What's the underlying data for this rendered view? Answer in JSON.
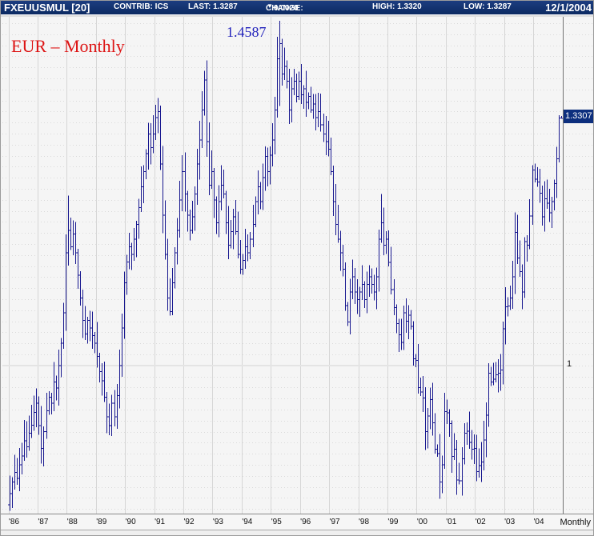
{
  "header": {
    "symbol": "FXEUUSMUL [20]",
    "contrib": "CONTRIB: ICS",
    "last": "LAST: 1.3287",
    "change_label": "CHANGE:",
    "change_arrow": "▼",
    "change_value": "0.0020",
    "high": "HIGH: 1.3320",
    "low": "LOW: 1.3287",
    "date": "12/1/2004"
  },
  "annotations": {
    "series_title": "EUR – Monthly",
    "peak_label": "1.4587",
    "price_box_value": "1.3307",
    "unit_gridline_label": "1",
    "interval_label": "Monthly"
  },
  "colors": {
    "header_bg": "#10306e",
    "bar_color": "#17178f",
    "title_red": "#dd1414",
    "annotation_blue": "#2222bb",
    "price_box_bg": "#0d2f7e",
    "grid_vertical": "#d6d6d6",
    "grid_dotted": "#d9d9d9",
    "grid_unit_line": "#e4e4e4",
    "plot_border": "#737373",
    "background": "#f5f5f5"
  },
  "chart_data": {
    "type": "bar",
    "subtype": "ohlc-hlc-bars",
    "title": "EUR – Monthly",
    "instrument": "FXEUUSMUL [20]",
    "interval": "Monthly",
    "start_month": "1986-01",
    "end_month": "2004-12",
    "x_tick_labels": [
      "'86",
      "'87",
      "'88",
      "'89",
      "'90",
      "'91",
      "'92",
      "'93",
      "'94",
      "'95",
      "'96",
      "'97",
      "'98",
      "'99",
      "'00",
      "'01",
      "'02",
      "'03",
      "'04"
    ],
    "y_axis_labeled_value": 1,
    "ylim_visible": [
      0.8,
      1.46
    ],
    "annotated_high": 1.4587,
    "last": 1.3287,
    "session_high": 1.332,
    "session_low": 1.3287,
    "change": -0.002,
    "monthly_closes": [
      0.83,
      0.845,
      0.858,
      0.85,
      0.868,
      0.88,
      0.9,
      0.892,
      0.91,
      0.921,
      0.938,
      0.95,
      0.92,
      0.89,
      0.912,
      0.94,
      0.958,
      0.95,
      0.978,
      0.97,
      1.0,
      1.03,
      1.07,
      1.15,
      1.18,
      1.158,
      1.175,
      1.15,
      1.12,
      1.09,
      1.06,
      1.042,
      1.06,
      1.05,
      1.04,
      1.03,
      1.012,
      0.992,
      0.98,
      0.958,
      0.932,
      0.92,
      0.95,
      0.932,
      0.96,
      1.0,
      1.05,
      1.11,
      1.138,
      1.158,
      1.148,
      1.168,
      1.188,
      1.21,
      1.238,
      1.258,
      1.282,
      1.308,
      1.29,
      1.308,
      1.33,
      1.338,
      1.268,
      1.2,
      1.148,
      1.09,
      1.072,
      1.11,
      1.15,
      1.18,
      1.22,
      1.258,
      1.228,
      1.2,
      1.18,
      1.198,
      1.228,
      1.268,
      1.3,
      1.34,
      1.38,
      1.298,
      1.24,
      1.258,
      1.22,
      1.19,
      1.218,
      1.24,
      1.228,
      1.19,
      1.16,
      1.178,
      1.198,
      1.178,
      1.148,
      1.128,
      1.14,
      1.158,
      1.15,
      1.168,
      1.188,
      1.218,
      1.238,
      1.218,
      1.25,
      1.278,
      1.258,
      1.28,
      1.3,
      1.34,
      1.408,
      1.428,
      1.388,
      1.398,
      1.378,
      1.34,
      1.368,
      1.378,
      1.358,
      1.378,
      1.36,
      1.368,
      1.35,
      1.358,
      1.34,
      1.348,
      1.33,
      1.338,
      1.32,
      1.308,
      1.298,
      1.288,
      1.258,
      1.218,
      1.188,
      1.168,
      1.15,
      1.128,
      1.08,
      1.058,
      1.098,
      1.118,
      1.098,
      1.088,
      1.098,
      1.108,
      1.088,
      1.108,
      1.118,
      1.108,
      1.098,
      1.118,
      1.168,
      1.19,
      1.16,
      1.168,
      1.137,
      1.101,
      1.077,
      1.056,
      1.041,
      1.031,
      1.07,
      1.059,
      1.067,
      1.052,
      1.009,
      1.007,
      0.971,
      0.965,
      0.957,
      0.912,
      0.933,
      0.955,
      0.924,
      0.889,
      0.883,
      0.845,
      0.868,
      0.939,
      0.937,
      0.923,
      0.879,
      0.889,
      0.848,
      0.847,
      0.876,
      0.91,
      0.913,
      0.898,
      0.889,
      0.89,
      0.859,
      0.867,
      0.872,
      0.901,
      0.934,
      0.99,
      0.978,
      0.982,
      0.988,
      0.99,
      0.994,
      1.049,
      1.078,
      1.079,
      1.09,
      1.118,
      1.177,
      1.143,
      1.125,
      1.098,
      1.165,
      1.16,
      1.199,
      1.26,
      1.248,
      1.244,
      1.229,
      1.198,
      1.222,
      1.216,
      1.203,
      1.218,
      1.242,
      1.275,
      1.329,
      1.3287
    ],
    "bar_extreme_overrides": {
      "24": {
        "h": 1.226
      },
      "61": {
        "h": 1.356
      },
      "80": {
        "h": 1.392
      },
      "110": {
        "h": 1.437,
        "l": 1.33
      },
      "111": {
        "h": 1.4587,
        "l": 1.345
      },
      "153": {
        "h": 1.228
      },
      "177": {
        "l": 0.823
      },
      "226": {
        "h": 1.333,
        "l": 1.27
      },
      "227": {
        "h": 1.332,
        "l": 1.3287
      }
    }
  }
}
